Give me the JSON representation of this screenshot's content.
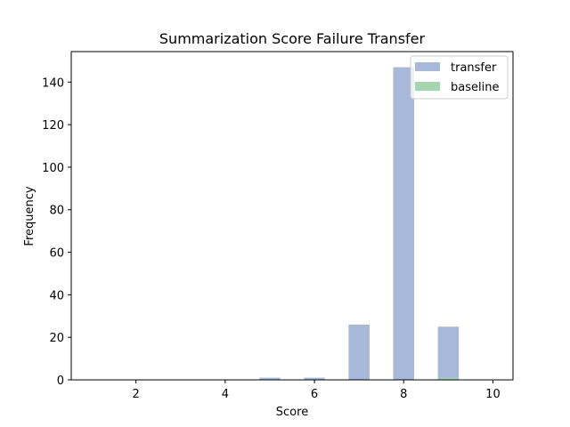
{
  "chart_data": {
    "type": "bar",
    "title": "Summarization Score Failure Transfer",
    "xlabel": "Score",
    "ylabel": "Frequency",
    "xlim": [
      0.55,
      10.45
    ],
    "ylim": [
      0,
      154.35
    ],
    "xticks": [
      2,
      4,
      6,
      8,
      10
    ],
    "yticks": [
      0,
      20,
      40,
      60,
      80,
      100,
      120,
      140
    ],
    "bar_width": 0.47,
    "legend_position": "top-right",
    "series": [
      {
        "name": "transfer",
        "color": "#a7b8d9",
        "x": [
          5,
          6,
          7,
          8,
          9
        ],
        "values": [
          1,
          1,
          26,
          147,
          25
        ]
      },
      {
        "name": "baseline",
        "color": "#a5d5ae",
        "x": [
          9
        ],
        "values": [
          1
        ]
      }
    ]
  }
}
